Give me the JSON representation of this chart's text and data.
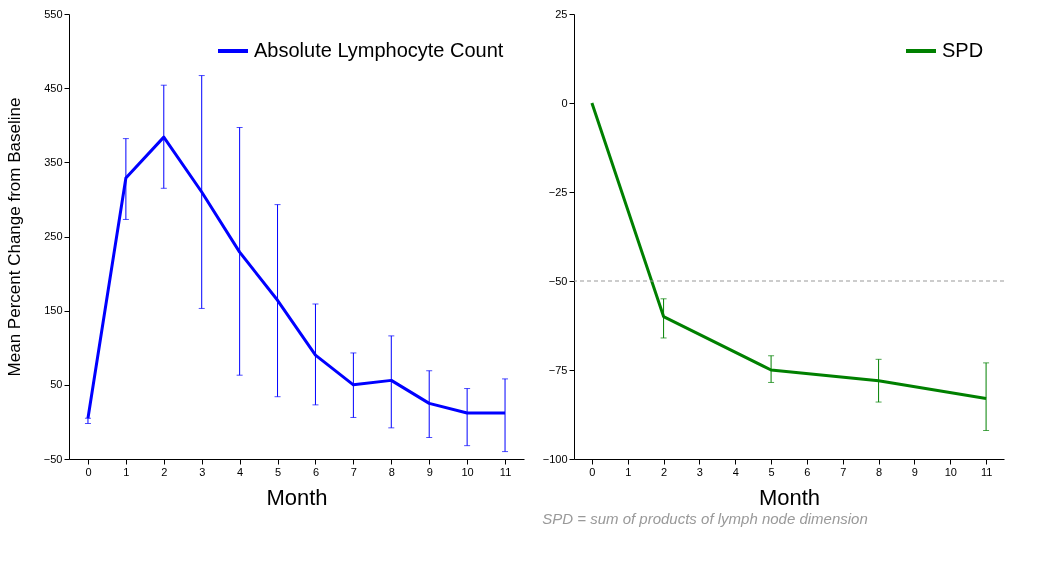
{
  "chart_data": [
    {
      "type": "line",
      "ylabel": "Mean Percent Change from Baseline",
      "xlabel": "Month",
      "x": [
        0,
        1,
        2,
        3,
        4,
        5,
        6,
        7,
        8,
        9,
        10,
        11
      ],
      "series": [
        {
          "name": "Absolute Lymphocyte Count",
          "color": "#0000ff",
          "values": [
            5,
            329,
            384,
            310,
            229,
            164,
            90,
            50,
            56,
            25,
            12,
            12
          ],
          "errors": [
            [
              -2,
              5
            ],
            [
              273,
              382
            ],
            [
              315,
              454
            ],
            [
              153,
              467
            ],
            [
              63,
              397
            ],
            [
              34,
              293
            ],
            [
              23,
              159
            ],
            [
              6,
              93
            ],
            [
              -8,
              116
            ],
            [
              -21,
              69
            ],
            [
              -32,
              45
            ],
            [
              -40,
              58
            ]
          ]
        }
      ],
      "xlim": [
        -0.5,
        11.5
      ],
      "xticks": [
        0,
        1,
        2,
        3,
        4,
        5,
        6,
        7,
        8,
        9,
        10,
        11
      ],
      "ylim": [
        -50,
        550
      ],
      "yticks": [
        -50,
        50,
        150,
        250,
        350,
        450,
        550
      ],
      "legend": "top right",
      "grid": false
    },
    {
      "type": "line",
      "xlabel": "Month",
      "x": [
        0,
        2,
        5,
        8,
        11
      ],
      "series": [
        {
          "name": "SPD",
          "color": "#008000",
          "values": [
            0,
            -60,
            -75,
            -78,
            -83
          ],
          "errors": [
            null,
            [
              -66,
              -55
            ],
            [
              -78.5,
              -71
            ],
            [
              -84,
              -72
            ],
            [
              -92,
              -73
            ]
          ]
        }
      ],
      "xlim": [
        -0.5,
        11.5
      ],
      "xticks": [
        0,
        1,
        2,
        3,
        4,
        5,
        6,
        7,
        8,
        9,
        10,
        11
      ],
      "ylim": [
        -100,
        25
      ],
      "yticks": [
        -100,
        -75,
        -50,
        -25,
        0,
        25
      ],
      "ref_lines": [
        {
          "axis": "y",
          "value": -50,
          "color": "#999999",
          "line_style": "dashed"
        }
      ],
      "annotations": [
        "SPD = sum of products of lymph node dimension"
      ],
      "legend": "top right",
      "grid": false
    }
  ]
}
